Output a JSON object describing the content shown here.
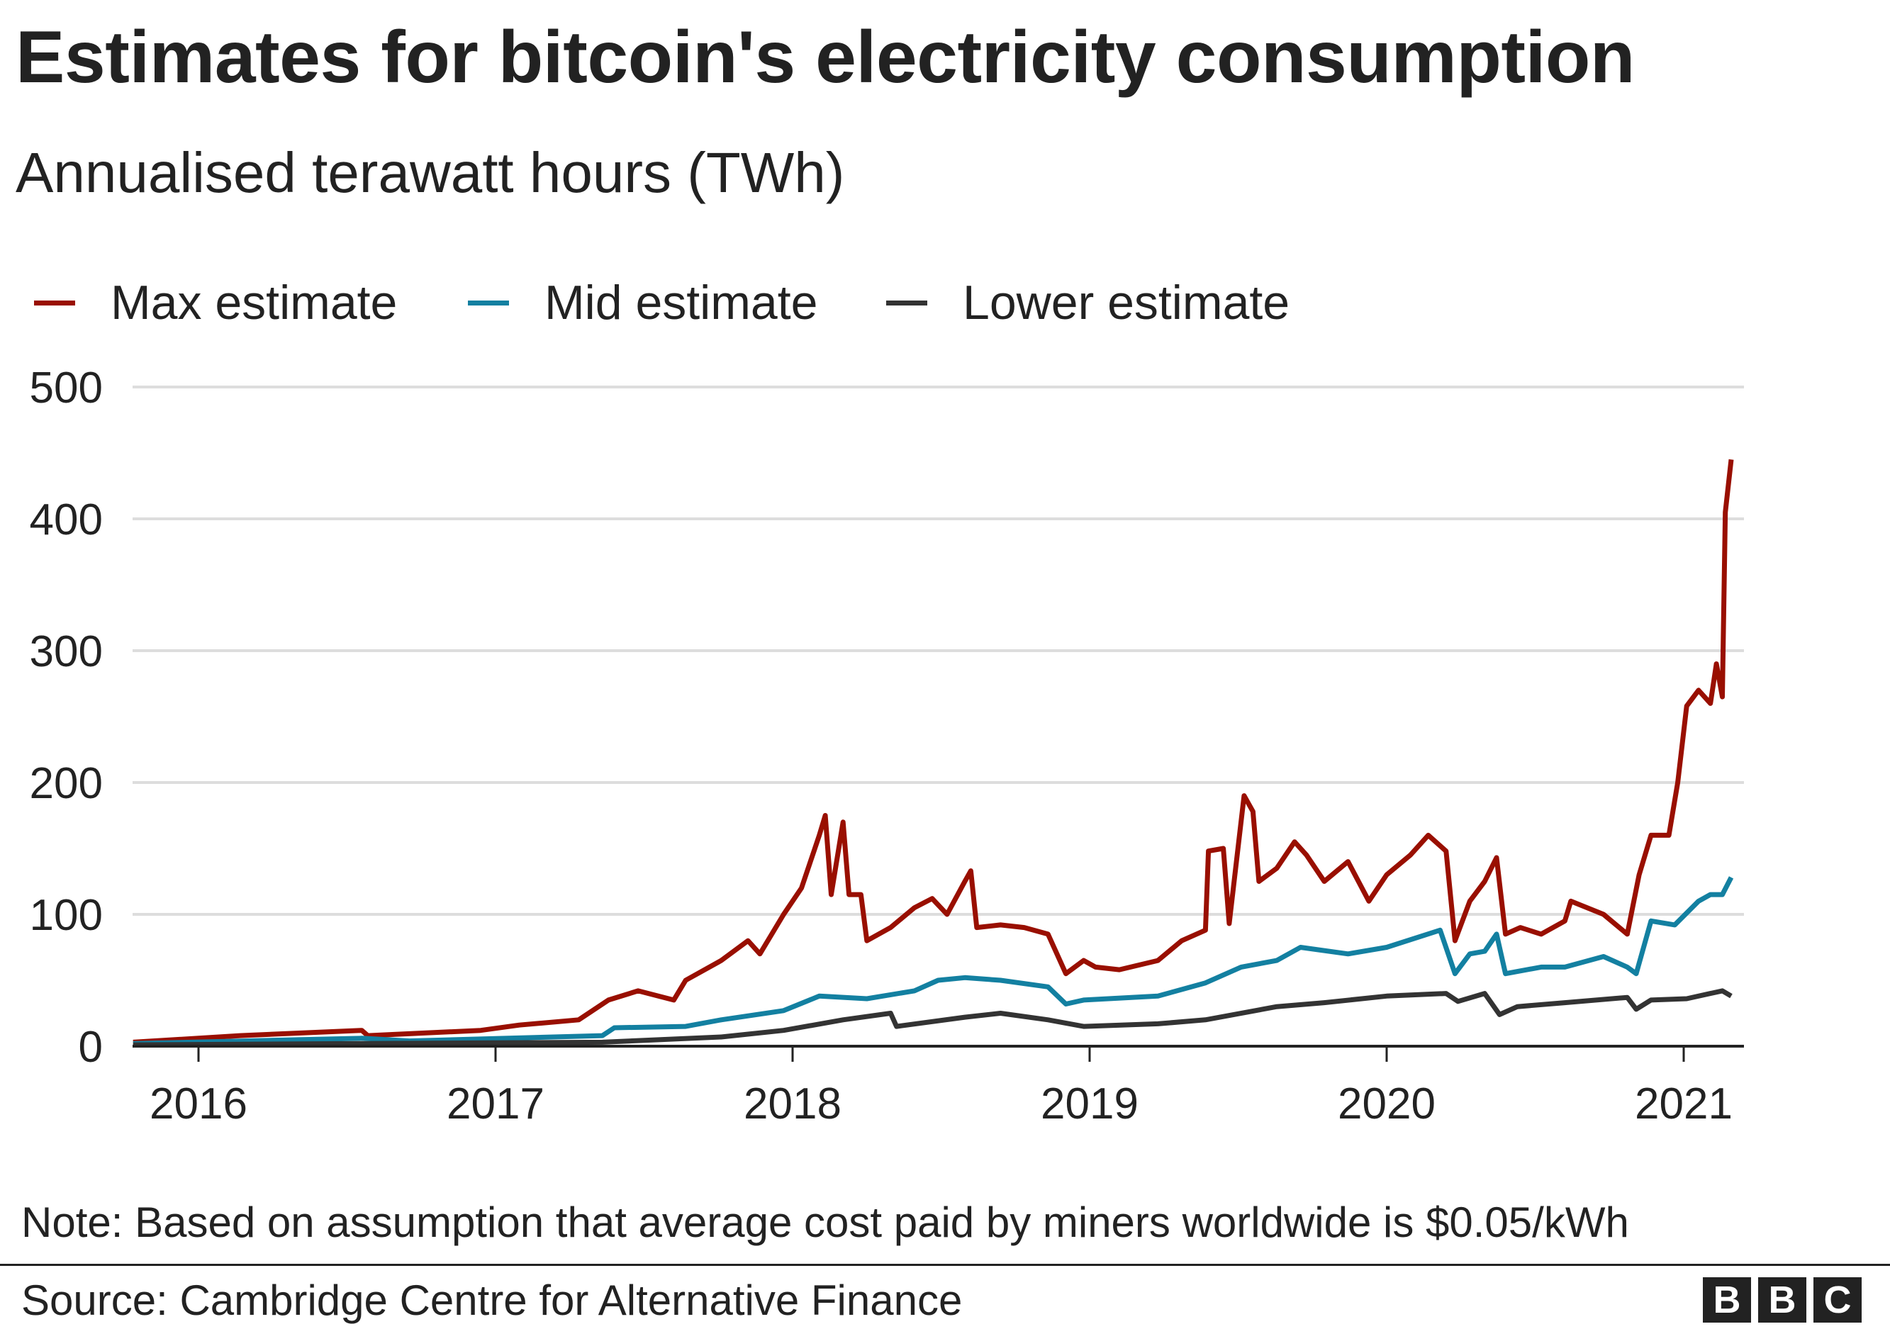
{
  "title": "Estimates for bitcoin's electricity consumption",
  "subtitle": "Annualised terawatt hours (TWh)",
  "note": "Note: Based on assumption that average cost paid by miners worldwide is $0.05/kWh",
  "source": "Source: Cambridge Centre for Alternative Finance",
  "logo": [
    "B",
    "B",
    "C"
  ],
  "chart_data": {
    "type": "line",
    "title": "Estimates for bitcoin's electricity consumption",
    "subtitle": "Annualised terawatt hours (TWh)",
    "xlabel": "",
    "ylabel": "",
    "x_unit": "year",
    "xlim": [
      2015.78,
      2021.2
    ],
    "ylim": [
      0,
      500
    ],
    "x_ticks": [
      2016,
      2017,
      2018,
      2019,
      2020,
      2021
    ],
    "x_tick_labels": [
      "2016",
      "2017",
      "2018",
      "2019",
      "2020",
      "2021"
    ],
    "y_ticks": [
      0,
      100,
      200,
      300,
      400,
      500
    ],
    "y_tick_labels": [
      "0",
      "100",
      "200",
      "300",
      "400",
      "500"
    ],
    "grid": "horizontal",
    "legend_position": "top-left",
    "series": [
      {
        "name": "Max estimate",
        "color": "#990f00",
        "points": [
          [
            2015.78,
            3
          ],
          [
            2016.14,
            8
          ],
          [
            2016.55,
            12
          ],
          [
            2016.57,
            8
          ],
          [
            2016.95,
            12
          ],
          [
            2017.08,
            16
          ],
          [
            2017.28,
            20
          ],
          [
            2017.38,
            35
          ],
          [
            2017.48,
            42
          ],
          [
            2017.6,
            35
          ],
          [
            2017.64,
            50
          ],
          [
            2017.76,
            65
          ],
          [
            2017.85,
            80
          ],
          [
            2017.89,
            70
          ],
          [
            2017.97,
            100
          ],
          [
            2018.03,
            120
          ],
          [
            2018.09,
            160
          ],
          [
            2018.11,
            175
          ],
          [
            2018.13,
            115
          ],
          [
            2018.17,
            170
          ],
          [
            2018.19,
            115
          ],
          [
            2018.23,
            115
          ],
          [
            2018.25,
            80
          ],
          [
            2018.33,
            90
          ],
          [
            2018.41,
            105
          ],
          [
            2018.47,
            112
          ],
          [
            2018.52,
            100
          ],
          [
            2018.58,
            125
          ],
          [
            2018.6,
            133
          ],
          [
            2018.62,
            90
          ],
          [
            2018.7,
            92
          ],
          [
            2018.78,
            90
          ],
          [
            2018.86,
            85
          ],
          [
            2018.92,
            55
          ],
          [
            2018.98,
            65
          ],
          [
            2019.02,
            60
          ],
          [
            2019.1,
            58
          ],
          [
            2019.23,
            65
          ],
          [
            2019.31,
            80
          ],
          [
            2019.39,
            88
          ],
          [
            2019.4,
            148
          ],
          [
            2019.45,
            150
          ],
          [
            2019.47,
            93
          ],
          [
            2019.52,
            190
          ],
          [
            2019.55,
            178
          ],
          [
            2019.57,
            125
          ],
          [
            2019.63,
            135
          ],
          [
            2019.69,
            155
          ],
          [
            2019.73,
            145
          ],
          [
            2019.79,
            125
          ],
          [
            2019.87,
            140
          ],
          [
            2019.94,
            110
          ],
          [
            2020.0,
            130
          ],
          [
            2020.08,
            145
          ],
          [
            2020.14,
            160
          ],
          [
            2020.2,
            148
          ],
          [
            2020.23,
            80
          ],
          [
            2020.28,
            110
          ],
          [
            2020.33,
            125
          ],
          [
            2020.37,
            143
          ],
          [
            2020.4,
            85
          ],
          [
            2020.45,
            90
          ],
          [
            2020.52,
            85
          ],
          [
            2020.6,
            95
          ],
          [
            2020.62,
            110
          ],
          [
            2020.73,
            100
          ],
          [
            2020.81,
            85
          ],
          [
            2020.85,
            130
          ],
          [
            2020.89,
            160
          ],
          [
            2020.95,
            160
          ],
          [
            2020.98,
            200
          ],
          [
            2021.01,
            258
          ],
          [
            2021.05,
            270
          ],
          [
            2021.09,
            260
          ],
          [
            2021.11,
            290
          ],
          [
            2021.13,
            265
          ],
          [
            2021.14,
            405
          ],
          [
            2021.16,
            445
          ]
        ]
      },
      {
        "name": "Mid estimate",
        "color": "#1380a1",
        "points": [
          [
            2015.78,
            2
          ],
          [
            2016.55,
            6
          ],
          [
            2016.71,
            4
          ],
          [
            2017.36,
            8
          ],
          [
            2017.4,
            14
          ],
          [
            2017.64,
            15
          ],
          [
            2017.76,
            20
          ],
          [
            2017.97,
            27
          ],
          [
            2018.09,
            38
          ],
          [
            2018.25,
            36
          ],
          [
            2018.41,
            42
          ],
          [
            2018.49,
            50
          ],
          [
            2018.58,
            52
          ],
          [
            2018.7,
            50
          ],
          [
            2018.86,
            45
          ],
          [
            2018.92,
            32
          ],
          [
            2018.98,
            35
          ],
          [
            2019.23,
            38
          ],
          [
            2019.39,
            48
          ],
          [
            2019.51,
            60
          ],
          [
            2019.63,
            65
          ],
          [
            2019.71,
            75
          ],
          [
            2019.87,
            70
          ],
          [
            2020.0,
            75
          ],
          [
            2020.18,
            88
          ],
          [
            2020.23,
            55
          ],
          [
            2020.28,
            70
          ],
          [
            2020.33,
            72
          ],
          [
            2020.37,
            85
          ],
          [
            2020.4,
            55
          ],
          [
            2020.52,
            60
          ],
          [
            2020.6,
            60
          ],
          [
            2020.73,
            68
          ],
          [
            2020.81,
            60
          ],
          [
            2020.84,
            55
          ],
          [
            2020.89,
            95
          ],
          [
            2020.97,
            92
          ],
          [
            2021.05,
            110
          ],
          [
            2021.09,
            115
          ],
          [
            2021.13,
            115
          ],
          [
            2021.16,
            128
          ]
        ]
      },
      {
        "name": "Lower estimate",
        "color": "#333333",
        "points": [
          [
            2015.78,
            1
          ],
          [
            2016.55,
            2
          ],
          [
            2017.36,
            3
          ],
          [
            2017.76,
            7
          ],
          [
            2017.97,
            12
          ],
          [
            2018.17,
            20
          ],
          [
            2018.33,
            25
          ],
          [
            2018.35,
            15
          ],
          [
            2018.58,
            22
          ],
          [
            2018.7,
            25
          ],
          [
            2018.86,
            20
          ],
          [
            2018.98,
            15
          ],
          [
            2019.23,
            17
          ],
          [
            2019.39,
            20
          ],
          [
            2019.63,
            30
          ],
          [
            2019.79,
            33
          ],
          [
            2020.0,
            38
          ],
          [
            2020.2,
            40
          ],
          [
            2020.24,
            34
          ],
          [
            2020.33,
            40
          ],
          [
            2020.38,
            24
          ],
          [
            2020.44,
            30
          ],
          [
            2020.6,
            33
          ],
          [
            2020.81,
            37
          ],
          [
            2020.84,
            28
          ],
          [
            2020.89,
            35
          ],
          [
            2021.01,
            36
          ],
          [
            2021.09,
            40
          ],
          [
            2021.13,
            42
          ],
          [
            2021.16,
            38
          ]
        ]
      }
    ]
  }
}
